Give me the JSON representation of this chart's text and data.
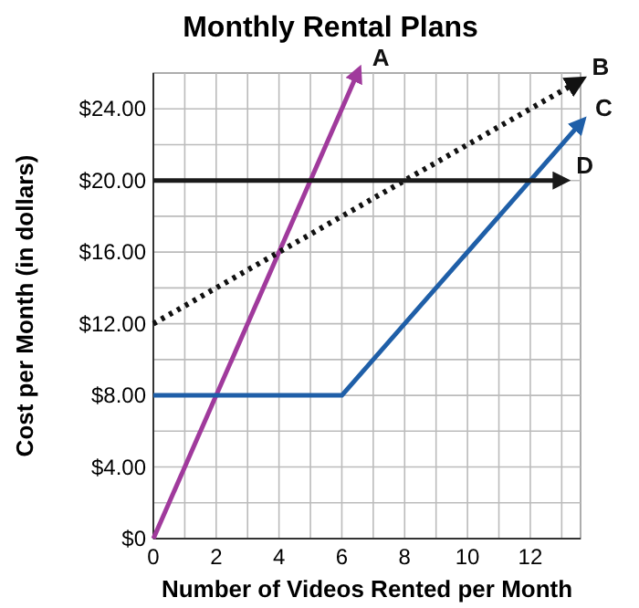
{
  "chart_data": {
    "type": "line",
    "title": "Monthly Rental Plans",
    "xlabel": "Number of Videos Rented per Month",
    "ylabel": "Cost per Month (in dollars)",
    "xlim": [
      0,
      13.6
    ],
    "ylim": [
      0,
      26
    ],
    "xticks": [
      0,
      {
        "value": 1,
        "label": null
      },
      2,
      {
        "value": 3,
        "label": null
      },
      4,
      {
        "value": 5,
        "label": null
      },
      6,
      {
        "value": 7,
        "label": null
      },
      8,
      {
        "value": 9,
        "label": null
      },
      10,
      {
        "value": 11,
        "label": null
      },
      12,
      {
        "value": 13,
        "label": null
      }
    ],
    "yticks": [
      {
        "value": 0,
        "label": "$0"
      },
      {
        "value": 2,
        "label": null
      },
      {
        "value": 4,
        "label": "$4.00"
      },
      {
        "value": 6,
        "label": null
      },
      {
        "value": 8,
        "label": "$8.00"
      },
      {
        "value": 10,
        "label": null
      },
      {
        "value": 12,
        "label": "$12.00"
      },
      {
        "value": 14,
        "label": null
      },
      {
        "value": 16,
        "label": "$16.00"
      },
      {
        "value": 18,
        "label": null
      },
      {
        "value": 20,
        "label": "$20.00"
      },
      {
        "value": 22,
        "label": null
      },
      {
        "value": 24,
        "label": "$24.00"
      }
    ],
    "grid": true,
    "marker": "none",
    "series": [
      {
        "name": "A",
        "color": "#a03a9c",
        "x": [
          0,
          6.5
        ],
        "values": [
          0,
          26
        ],
        "line_style": "solid"
      },
      {
        "name": "B",
        "color": "#111111",
        "x": [
          0,
          13.5
        ],
        "values": [
          12,
          25.5
        ],
        "line_style": "dotted"
      },
      {
        "name": "C",
        "color": "#1f5fa8",
        "x": [
          0,
          6,
          13.6
        ],
        "values": [
          8,
          8,
          23.2
        ],
        "line_style": "solid"
      },
      {
        "name": "D",
        "color": "#1a1a1a",
        "x": [
          0,
          13
        ],
        "values": [
          20,
          20
        ],
        "line_style": "solid"
      }
    ]
  }
}
